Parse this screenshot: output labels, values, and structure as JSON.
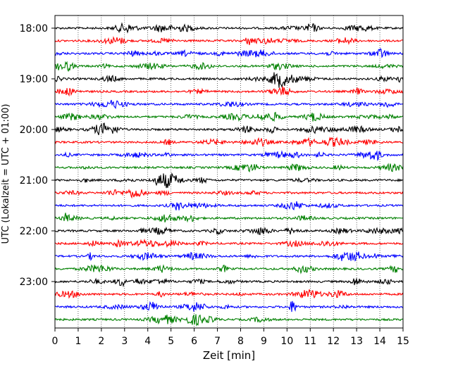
{
  "chart_data": {
    "type": "line",
    "title": "",
    "xlabel": "Zeit  [min]",
    "ylabel": "UTC (Lokalzeit = UTC + 01:00)",
    "xlim": [
      0,
      15
    ],
    "x_ticks": [
      0,
      1,
      2,
      3,
      4,
      5,
      6,
      7,
      8,
      9,
      10,
      11,
      12,
      13,
      14,
      15
    ],
    "x_tick_labels": [
      "0",
      "1",
      "2",
      "3",
      "4",
      "5",
      "6",
      "7",
      "8",
      "9",
      "10",
      "11",
      "12",
      "13",
      "14",
      "15"
    ],
    "y_tick_labels": [
      "18:00",
      "19:00",
      "20:00",
      "21:00",
      "22:00",
      "23:00"
    ],
    "grid": "vertical-dotted",
    "line_colors": [
      "#000000",
      "#ff0000",
      "#0000ff",
      "#008000"
    ],
    "rows": [
      {
        "time": "18:00",
        "color": "#000000"
      },
      {
        "time": "18:15",
        "color": "#ff0000"
      },
      {
        "time": "18:30",
        "color": "#0000ff"
      },
      {
        "time": "18:45",
        "color": "#008000"
      },
      {
        "time": "19:00",
        "color": "#000000"
      },
      {
        "time": "19:15",
        "color": "#ff0000"
      },
      {
        "time": "19:30",
        "color": "#0000ff"
      },
      {
        "time": "19:45",
        "color": "#008000"
      },
      {
        "time": "20:00",
        "color": "#000000"
      },
      {
        "time": "20:15",
        "color": "#ff0000"
      },
      {
        "time": "20:30",
        "color": "#0000ff"
      },
      {
        "time": "20:45",
        "color": "#008000"
      },
      {
        "time": "21:00",
        "color": "#000000"
      },
      {
        "time": "21:15",
        "color": "#ff0000"
      },
      {
        "time": "21:30",
        "color": "#0000ff"
      },
      {
        "time": "21:45",
        "color": "#008000"
      },
      {
        "time": "22:00",
        "color": "#000000"
      },
      {
        "time": "22:15",
        "color": "#ff0000"
      },
      {
        "time": "22:30",
        "color": "#0000ff"
      },
      {
        "time": "22:45",
        "color": "#008000"
      },
      {
        "time": "23:00",
        "color": "#000000"
      },
      {
        "time": "23:15",
        "color": "#ff0000"
      },
      {
        "time": "23:30",
        "color": "#0000ff"
      },
      {
        "time": "23:45",
        "color": "#008000"
      }
    ]
  }
}
